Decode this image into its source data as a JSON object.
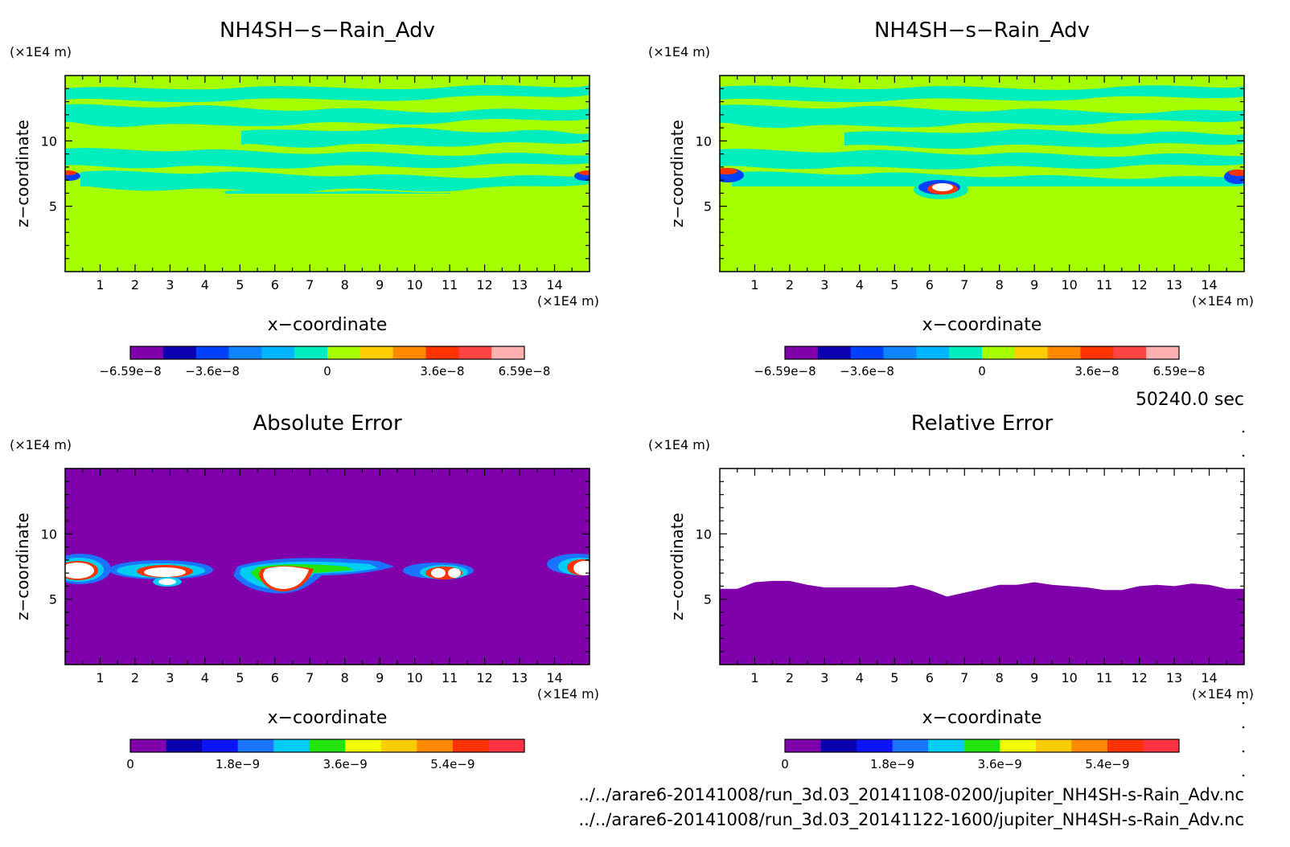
{
  "page": {
    "time_label": "50240.0 sec",
    "file_paths": [
      "../../arare6-20141008/run_3d.03_20141108-0200/jupiter_NH4SH-s-Rain_Adv.nc",
      "../../arare6-20141008/run_3d.03_20141122-1600/jupiter_NH4SH-s-Rain_Adv.nc"
    ]
  },
  "colors": {
    "purple": "#7f00aa",
    "green_field": "#a6ff00",
    "cyan_field": "#00eebd",
    "white": "#ffffff",
    "diverging_scale": [
      "#7f00aa",
      "#0b00b0",
      "#0041ff",
      "#0f84ff",
      "#00b4ff",
      "#00eebd",
      "#a6ff00",
      "#ffcc00",
      "#ff8a00",
      "#ff3300",
      "#ff4444",
      "#ffb0b0"
    ],
    "sequential_scale": [
      "#7f00aa",
      "#0b00b0",
      "#0c14ff",
      "#1a74ff",
      "#00cdf2",
      "#22e510",
      "#f2ff00",
      "#ffcc00",
      "#ff8a00",
      "#ff3300",
      "#ff3344",
      "#ffb0b0"
    ]
  },
  "chart_data": [
    {
      "type": "heatmap",
      "title": "NH4SH−s−Rain_Adv",
      "xlabel": "x−coordinate",
      "ylabel": "z−coordinate",
      "x_unit": "(×1E4 m)",
      "y_unit": "(×1E4 m)",
      "xlim": [
        0,
        15
      ],
      "ylim": [
        0,
        15
      ],
      "x_ticks": [
        "1",
        "2",
        "3",
        "4",
        "5",
        "6",
        "7",
        "8",
        "9",
        "10",
        "11",
        "12",
        "13",
        "14"
      ],
      "y_ticks": [
        "5",
        "10"
      ],
      "colorbar_ticks": [
        "−6.59e−8",
        "−3.6e−8",
        "0",
        "3.6e−8",
        "6.59e−8"
      ],
      "colorbar_levels": 12,
      "background_below_z": 6,
      "features": [
        {
          "name": "layer",
          "z_range": [
            6,
            15
          ],
          "pattern": "banded green/cyan"
        },
        {
          "name": "spot",
          "x": 0.1,
          "z": 7.2,
          "color": "red/blue"
        },
        {
          "name": "spot",
          "x": 14.9,
          "z": 7.2,
          "color": "red/blue"
        }
      ]
    },
    {
      "type": "heatmap",
      "title": "NH4SH−s−Rain_Adv",
      "xlabel": "x−coordinate",
      "ylabel": "z−coordinate",
      "x_unit": "(×1E4 m)",
      "y_unit": "(×1E4 m)",
      "xlim": [
        0,
        15
      ],
      "ylim": [
        0,
        15
      ],
      "x_ticks": [
        "1",
        "2",
        "3",
        "4",
        "5",
        "6",
        "7",
        "8",
        "9",
        "10",
        "11",
        "12",
        "13",
        "14"
      ],
      "y_ticks": [
        "5",
        "10"
      ],
      "colorbar_ticks": [
        "−6.59e−8",
        "−3.6e−8",
        "0",
        "3.6e−8",
        "6.59e−8"
      ],
      "colorbar_levels": 12,
      "background_below_z": 6.4,
      "features": [
        {
          "name": "layer",
          "z_range": [
            6.4,
            15
          ],
          "pattern": "banded green/cyan"
        },
        {
          "name": "spot",
          "x": 0.3,
          "z": 7.2,
          "color": "red/blue"
        },
        {
          "name": "spot",
          "x": 6.5,
          "z": 6.3,
          "color": "white/red/blue"
        },
        {
          "name": "spot",
          "x": 14.8,
          "z": 7.2,
          "color": "red/blue"
        }
      ]
    },
    {
      "type": "heatmap",
      "title": "Absolute Error",
      "xlabel": "x−coordinate",
      "ylabel": "z−coordinate",
      "x_unit": "(×1E4 m)",
      "y_unit": "(×1E4 m)",
      "xlim": [
        0,
        15
      ],
      "ylim": [
        0,
        15
      ],
      "x_ticks": [
        "1",
        "2",
        "3",
        "4",
        "5",
        "6",
        "7",
        "8",
        "9",
        "10",
        "11",
        "12",
        "13",
        "14"
      ],
      "y_ticks": [
        "5",
        "10"
      ],
      "colorbar_ticks": [
        "0",
        "1.8e−9",
        "3.6e−9",
        "5.4e−9"
      ],
      "colorbar_levels": 11,
      "features": [
        {
          "name": "blob",
          "x": 0.5,
          "z": 7.0
        },
        {
          "name": "blob",
          "x": 3.0,
          "z": 7.0
        },
        {
          "name": "blob",
          "x": 6.3,
          "z": 6.6
        },
        {
          "name": "blob",
          "x": 10.7,
          "z": 6.8
        },
        {
          "name": "blob",
          "x": 14.5,
          "z": 7.2
        }
      ]
    },
    {
      "type": "heatmap",
      "title": "Relative Error",
      "xlabel": "x−coordinate",
      "ylabel": "z−coordinate",
      "x_unit": "(×1E4 m)",
      "y_unit": "(×1E4 m)",
      "xlim": [
        0,
        15
      ],
      "ylim": [
        0,
        15
      ],
      "x_ticks": [
        "1",
        "2",
        "3",
        "4",
        "5",
        "6",
        "7",
        "8",
        "9",
        "10",
        "11",
        "12",
        "13",
        "14"
      ],
      "y_ticks": [
        "5",
        "10"
      ],
      "colorbar_ticks": [
        "0",
        "1.8e−9",
        "3.6e−9",
        "5.4e−9"
      ],
      "colorbar_levels": 11,
      "boundary_x": [
        0,
        0.5,
        1,
        1.5,
        2,
        2.5,
        3,
        4,
        5,
        5.5,
        6,
        6.5,
        7,
        7.5,
        8,
        8.5,
        9,
        9.5,
        10,
        10.5,
        11,
        11.5,
        12,
        12.5,
        13,
        13.5,
        14,
        14.5,
        15
      ],
      "boundary_z": [
        5.8,
        5.8,
        6.3,
        6.4,
        6.4,
        6.1,
        5.9,
        5.9,
        5.9,
        6.1,
        5.7,
        5.2,
        5.5,
        5.8,
        6.1,
        6.1,
        6.3,
        6.1,
        6.0,
        5.9,
        5.7,
        5.7,
        6.0,
        6.1,
        6.0,
        6.2,
        6.1,
        5.8,
        5.8
      ]
    }
  ]
}
